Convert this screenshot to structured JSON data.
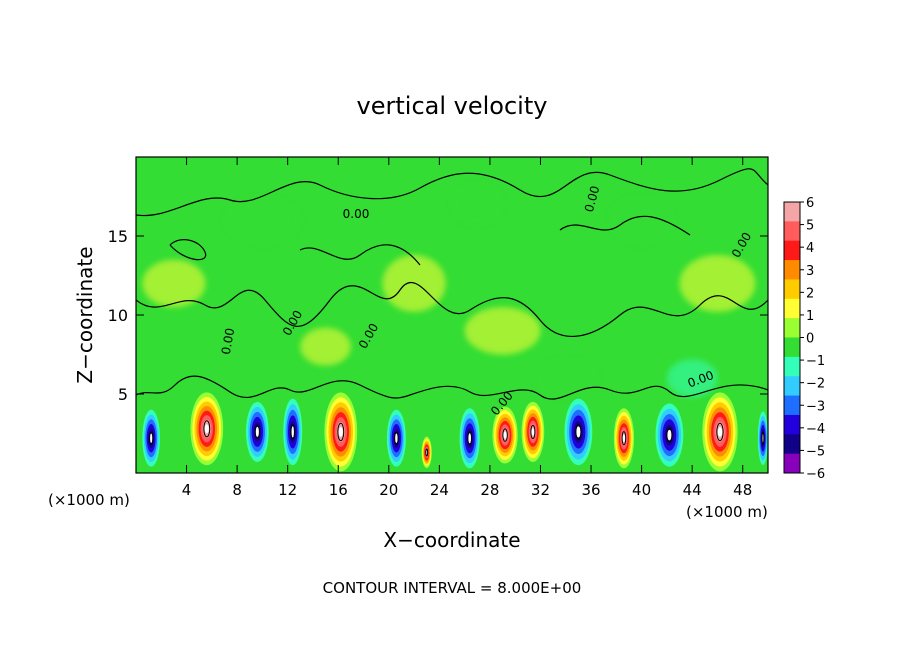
{
  "chart_data": {
    "type": "heatmap",
    "title": "vertical velocity",
    "xlabel": "X−coordinate",
    "ylabel": "Z−coordinate",
    "x_unit_label": "(×1000 m)",
    "y_unit_label": "(×1000 m)",
    "footer": "CONTOUR INTERVAL = 8.000E+00",
    "contour_label": "0.00",
    "xlim": [
      0,
      50
    ],
    "ylim": [
      0,
      20
    ],
    "x_ticks": [
      4,
      8,
      12,
      16,
      20,
      24,
      28,
      32,
      36,
      40,
      44,
      48
    ],
    "y_ticks": [
      5,
      10,
      15
    ],
    "colorbar": {
      "ticks": [
        6,
        5,
        4,
        3,
        2,
        1,
        0,
        -1,
        -2,
        -3,
        -4,
        -5,
        -6
      ],
      "tick_labels": [
        "6",
        "5",
        "4",
        "3",
        "2",
        "1",
        "0",
        "−1",
        "−2",
        "−3",
        "−4",
        "−5",
        "−6"
      ],
      "colors": [
        "#f4a6a6",
        "#ff5c5c",
        "#ff1a1a",
        "#ff8c00",
        "#ffcc00",
        "#ffff33",
        "#99ff33",
        "#33dd33",
        "#33ffbb",
        "#33ccff",
        "#1e6eff",
        "#2200dd",
        "#110088",
        "#8800bb"
      ]
    },
    "background_value": 0,
    "cells_near_surface": [
      {
        "x": 1.2,
        "z": 2.2,
        "w": 1.4,
        "h": 3.6,
        "sign": "down"
      },
      {
        "x": 5.6,
        "z": 2.8,
        "w": 2.6,
        "h": 4.6,
        "sign": "up"
      },
      {
        "x": 9.6,
        "z": 2.6,
        "w": 1.8,
        "h": 3.8,
        "sign": "down"
      },
      {
        "x": 12.4,
        "z": 2.6,
        "w": 1.5,
        "h": 4.2,
        "sign": "down"
      },
      {
        "x": 16.2,
        "z": 2.6,
        "w": 2.6,
        "h": 5.0,
        "sign": "up"
      },
      {
        "x": 20.6,
        "z": 2.2,
        "w": 1.5,
        "h": 3.6,
        "sign": "down"
      },
      {
        "x": 23.0,
        "z": 1.3,
        "w": 0.8,
        "h": 2.0,
        "sign": "up"
      },
      {
        "x": 26.4,
        "z": 2.2,
        "w": 1.6,
        "h": 3.8,
        "sign": "down"
      },
      {
        "x": 29.2,
        "z": 2.4,
        "w": 2.0,
        "h": 3.6,
        "sign": "up"
      },
      {
        "x": 31.4,
        "z": 2.6,
        "w": 1.8,
        "h": 3.8,
        "sign": "up"
      },
      {
        "x": 35.0,
        "z": 2.6,
        "w": 2.2,
        "h": 4.2,
        "sign": "down"
      },
      {
        "x": 38.6,
        "z": 2.2,
        "w": 1.6,
        "h": 3.8,
        "sign": "up"
      },
      {
        "x": 42.2,
        "z": 2.4,
        "w": 2.2,
        "h": 4.0,
        "sign": "down"
      },
      {
        "x": 46.2,
        "z": 2.6,
        "w": 2.8,
        "h": 5.0,
        "sign": "up"
      },
      {
        "x": 49.6,
        "z": 2.2,
        "w": 0.8,
        "h": 3.4,
        "sign": "down"
      }
    ]
  }
}
